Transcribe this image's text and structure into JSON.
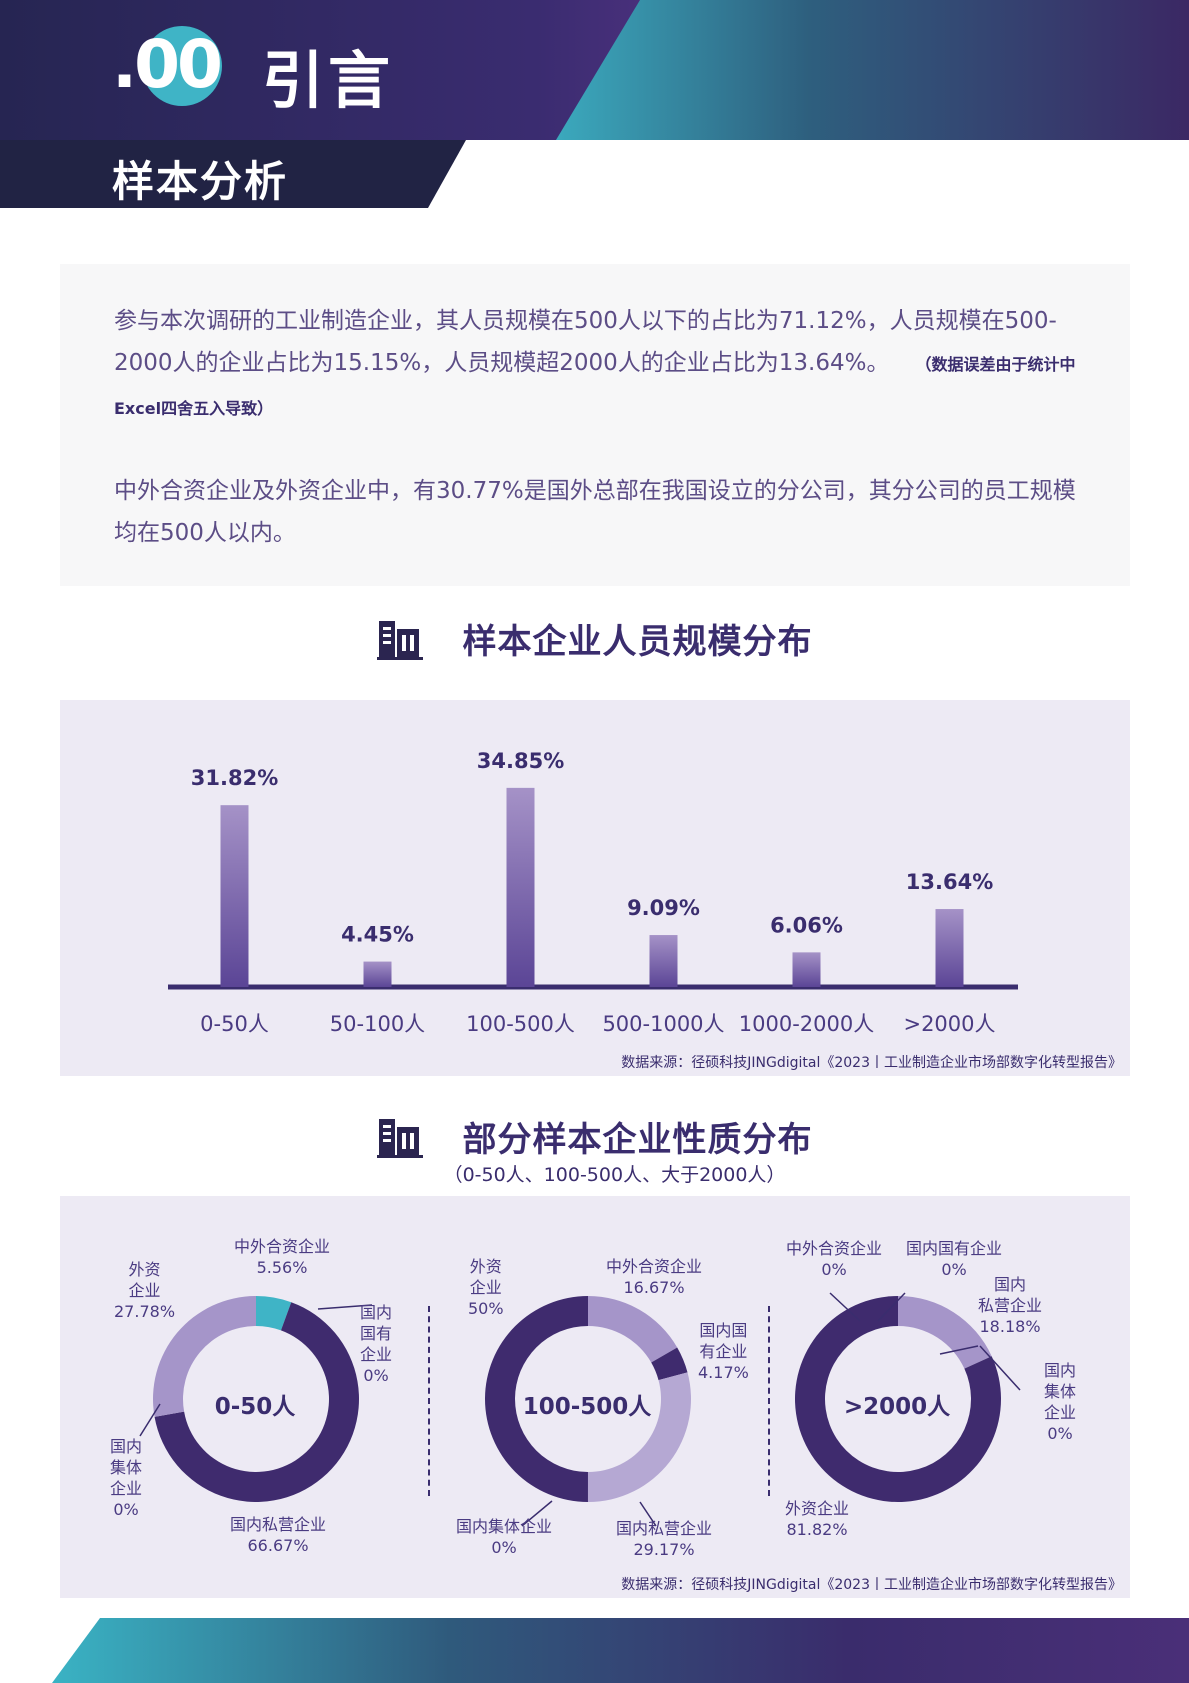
{
  "header": {
    "number": ".00",
    "title": "引言",
    "subtitle": "样本分析"
  },
  "intro": {
    "paragraph1": "参与本次调研的工业制造企业，其人员规模在500人以下的占比为71.12%，人员规模在500-2000人的企业占比为15.15%，人员规模超2000人的企业占比为13.64%。",
    "note": "（数据误差由于统计中Excel四舍五入导致）",
    "paragraph2": "中外合资企业及外资企业中，有30.77%是国外总部在我国设立的分公司，其分公司的员工规模均在500人以内。"
  },
  "section1": {
    "title": "样本企业人员规模分布",
    "icon": "building-icon",
    "source": "数据来源：径硕科技JINGdigital《2023丨工业制造企业市场部数字化转型报告》"
  },
  "section2": {
    "title": "部分样本企业性质分布",
    "subtitle": "（0-50人、100-500人、大于2000人）",
    "icon": "building-icon",
    "source": "数据来源：径硕科技JINGdigital《2023丨工业制造企业市场部数字化转型报告》"
  },
  "chart_data": [
    {
      "type": "bar",
      "title": "样本企业人员规模分布",
      "categories": [
        "0-50人",
        "50-100人",
        "100-500人",
        "500-1000人",
        "1000-2000人",
        ">2000人"
      ],
      "values": [
        31.82,
        4.45,
        34.85,
        9.09,
        6.06,
        13.64
      ],
      "labels": [
        "31.82%",
        "4.45%",
        "34.85%",
        "9.09%",
        "6.06%",
        "13.64%"
      ],
      "grid": false,
      "colors": {
        "bar_top": "#a592c7",
        "bar_bottom": "#5b4596",
        "axis": "#3a2d6e"
      }
    },
    {
      "type": "pie",
      "center_label": "0-50人",
      "segments": [
        {
          "name": "中外合资企业",
          "label": "中外合资企业\n5.56%",
          "value": 5.56,
          "color": "#3fb4c6"
        },
        {
          "name": "国内国有企业",
          "label": "国内\n国有\n企业\n0%",
          "value": 0,
          "color": "#3f2b6e"
        },
        {
          "name": "国内私营企业",
          "label": "国内私营企业\n66.67%",
          "value": 66.67,
          "color": "#3f2b6e"
        },
        {
          "name": "国内集体企业",
          "label": "国内\n集体\n企业\n0%",
          "value": 0,
          "color": "#5a4794"
        },
        {
          "name": "外资企业",
          "label": "外资\n企业\n27.78%",
          "value": 27.78,
          "color": "#a595c9"
        }
      ]
    },
    {
      "type": "pie",
      "center_label": "100-500人",
      "segments": [
        {
          "name": "中外合资企业",
          "label": "中外合资企业\n16.67%",
          "value": 16.67,
          "color": "#a595c9"
        },
        {
          "name": "国内国有企业",
          "label": "国内国\n有企业\n4.17%",
          "value": 4.17,
          "color": "#3f2b6e"
        },
        {
          "name": "国内私营企业",
          "label": "国内私营企业\n29.17%",
          "value": 29.17,
          "color": "#b5a8d3"
        },
        {
          "name": "国内集体企业",
          "label": "国内集体企业\n0%",
          "value": 0,
          "color": "#5a4794"
        },
        {
          "name": "外资企业",
          "label": "外资\n企业\n50%",
          "value": 50,
          "color": "#3f2b6e"
        }
      ]
    },
    {
      "type": "pie",
      "center_label": ">2000人",
      "segments": [
        {
          "name": "中外合资企业",
          "label": "中外合资企业\n0%",
          "value": 0,
          "color": "#3f2b6e"
        },
        {
          "name": "国内国有企业",
          "label": "国内国有企业\n0%",
          "value": 0,
          "color": "#3f2b6e"
        },
        {
          "name": "国内私营企业",
          "label": "国内\n私营企业\n18.18%",
          "value": 18.18,
          "color": "#a595c9"
        },
        {
          "name": "国内集体企业",
          "label": "国内\n集体\n企业\n0%",
          "value": 0,
          "color": "#5a4794"
        },
        {
          "name": "外资企业",
          "label": "外资企业\n81.82%",
          "value": 81.82,
          "color": "#3f2b6e"
        }
      ]
    }
  ]
}
